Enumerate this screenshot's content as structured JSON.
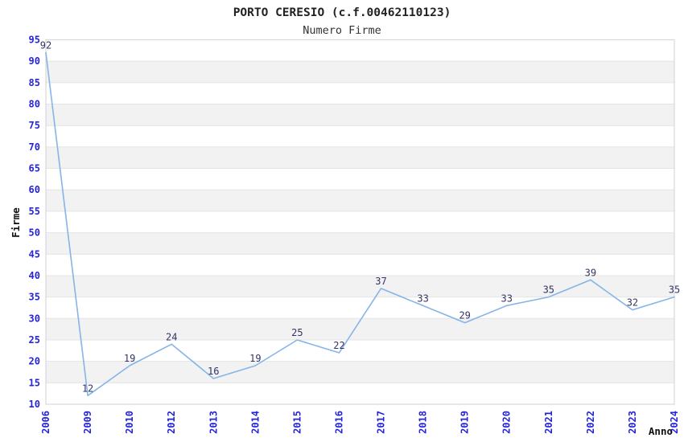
{
  "chart_data": {
    "type": "line",
    "title": "PORTO CERESIO (c.f.00462110123)",
    "subtitle": "Numero Firme",
    "xlabel": "Anno",
    "ylabel": "Firme",
    "categories": [
      "2006",
      "2009",
      "2010",
      "2012",
      "2013",
      "2014",
      "2015",
      "2016",
      "2017",
      "2018",
      "2019",
      "2020",
      "2021",
      "2022",
      "2023",
      "2024"
    ],
    "values": [
      92,
      12,
      19,
      24,
      16,
      19,
      25,
      22,
      37,
      33,
      29,
      33,
      35,
      39,
      32,
      35
    ],
    "ylim": [
      10,
      95
    ],
    "ytick_step": 5,
    "legend": "none",
    "grid": "horizontal-bands-alternating",
    "show_value_labels": true,
    "colors": {
      "line": "#85b4e8",
      "tick_label": "#2525d8",
      "value_label": "#333366",
      "band_fill": "#f2f2f2",
      "band_alt_fill": "#ffffff",
      "grid_line": "#e4e4e4",
      "plot_border": "#d8d8d8",
      "title_text": "#222222",
      "subtitle_text": "#333333",
      "axis_title_text": "#111111",
      "background": "#ffffff"
    }
  }
}
